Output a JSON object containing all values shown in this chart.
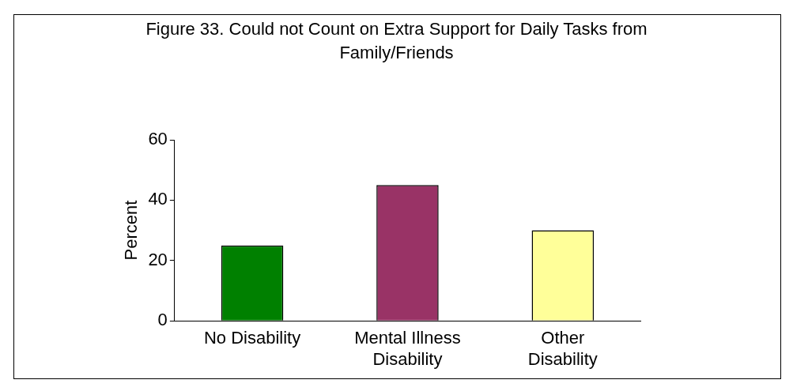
{
  "chart_data": {
    "type": "bar",
    "title": "Figure 33.  Could not Count on Extra Support for Daily Tasks from Family/Friends",
    "ylabel": "Percent",
    "categories": [
      "No Disability",
      "Mental Illness Disability",
      "Other Disability"
    ],
    "values": [
      25,
      45,
      30
    ],
    "colors": [
      "#008000",
      "#993366",
      "#ffff99"
    ],
    "ylim": [
      0,
      60
    ],
    "yticks": [
      0,
      20,
      40,
      60
    ],
    "grid": false,
    "legend": false
  }
}
